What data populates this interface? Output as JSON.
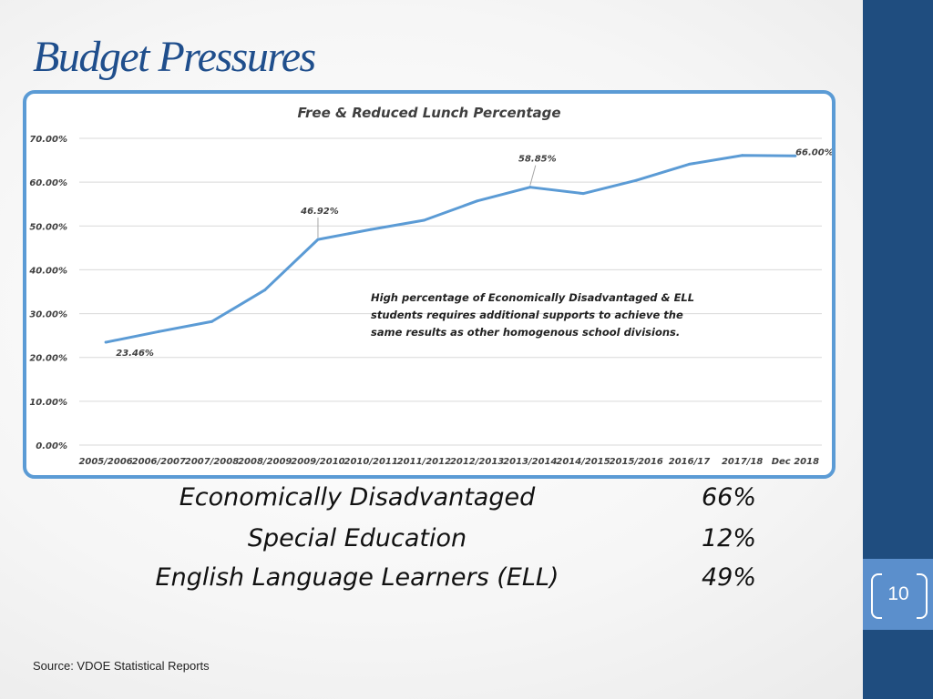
{
  "slide": {
    "title": "Budget Pressures",
    "page_number": "10",
    "source": "Source:  VDOE Statistical Reports"
  },
  "stats": [
    {
      "label": "Economically Disadvantaged",
      "value": "66%"
    },
    {
      "label": "Special Education",
      "value": "12%"
    },
    {
      "label": "English Language Learners (ELL)",
      "value": "49%"
    }
  ],
  "chart_data": {
    "type": "line",
    "title": "Free & Reduced Lunch Percentage",
    "xlabel": "",
    "ylabel": "",
    "categories": [
      "2005/2006",
      "2006/2007",
      "2007/2008",
      "2008/2009",
      "2009/2010",
      "2010/2011",
      "2011/2012",
      "2012/2013",
      "2013/2014",
      "2014/2015",
      "2015/2016",
      "2016/17",
      "2017/18",
      "Dec 2018"
    ],
    "series": [
      {
        "values": [
          23.46,
          25.9,
          28.2,
          35.4,
          46.92,
          49.2,
          51.3,
          55.7,
          58.85,
          57.4,
          60.4,
          64.1,
          66.1,
          66.0
        ],
        "color": "#5b9bd5"
      }
    ],
    "data_labels": [
      {
        "index": 0,
        "text": "23.46%"
      },
      {
        "index": 4,
        "text": "46.92%"
      },
      {
        "index": 8,
        "text": "58.85%"
      },
      {
        "index": 13,
        "text": "66.00%"
      }
    ],
    "annotation": "High percentage of Economically Disadvantaged & ELL students requires additional supports to achieve the same results as other homogenous school divisions.",
    "yticks": [
      "0.00%",
      "10.00%",
      "20.00%",
      "30.00%",
      "40.00%",
      "50.00%",
      "60.00%",
      "70.00%"
    ],
    "ylim": [
      0,
      70
    ],
    "grid": true,
    "gridline_color": "#d9d9d9",
    "legend": "none"
  }
}
